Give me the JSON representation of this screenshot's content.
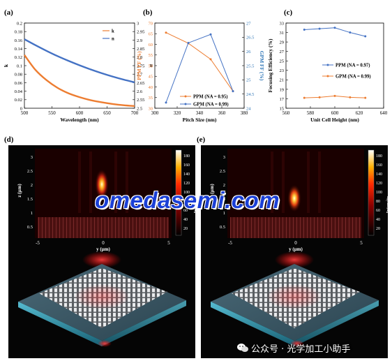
{
  "chart_data": [
    {
      "panel": "(a)",
      "type": "line",
      "xlabel": "Wavelength (nm)",
      "ylabel_left": "k",
      "ylabel_right": "n",
      "xlim": [
        500,
        700
      ],
      "ylim_left": [
        0,
        0.2
      ],
      "ylim_right": [
        2.5,
        3.0
      ],
      "xticks": [
        500,
        550,
        600,
        650,
        700
      ],
      "yticks_left": [
        "0",
        "0.02",
        "0.04",
        "0.06",
        "0.08",
        "0.1",
        "0.12",
        "0.14",
        "0.16",
        "0.18",
        "0.2"
      ],
      "yticks_right": [
        "2.5",
        "2.55",
        "2.6",
        "2.65",
        "2.7",
        "2.75",
        "2.8",
        "2.85",
        "2.9",
        "2.95",
        "3"
      ],
      "legend": "top-right",
      "series": [
        {
          "name": "k",
          "axis": "left",
          "color": "#ed7d31",
          "x": [
            500,
            520,
            540,
            560,
            580,
            600,
            620,
            640,
            660,
            680,
            700
          ],
          "y": [
            0.125,
            0.09,
            0.066,
            0.048,
            0.035,
            0.026,
            0.019,
            0.014,
            0.01,
            0.007,
            0.005
          ]
        },
        {
          "name": "n",
          "axis": "right",
          "color": "#4472c4",
          "x": [
            500,
            520,
            540,
            560,
            580,
            600,
            620,
            640,
            660,
            680,
            700
          ],
          "y": [
            2.905,
            2.87,
            2.837,
            2.806,
            2.778,
            2.752,
            2.728,
            2.706,
            2.686,
            2.668,
            2.652
          ]
        }
      ]
    },
    {
      "panel": "(b)",
      "type": "line",
      "xlabel": "Pitch Size (nm)",
      "ylabel_left": "PPM FF (%)",
      "ylabel_right": "GPM FF (%)",
      "xlim": [
        300,
        380
      ],
      "ylim_left": [
        30,
        70
      ],
      "ylim_right": [
        24,
        27
      ],
      "xticks": [
        300,
        320,
        340,
        360,
        380
      ],
      "yticks_left": [
        "30",
        "35",
        "40",
        "45",
        "50",
        "55",
        "60",
        "65",
        "70"
      ],
      "yticks_right": [
        "24",
        "24.5",
        "25",
        "25.5",
        "26",
        "26.5",
        "27"
      ],
      "legend": "bottom-center",
      "series": [
        {
          "name": "PPM (NA = 0.95)",
          "axis": "left",
          "color": "#ed7d31",
          "x": [
            310,
            330,
            350,
            370
          ],
          "y": [
            65.5,
            60.5,
            53,
            38
          ]
        },
        {
          "name": "GPM (NA = 0.99)",
          "axis": "right",
          "color": "#4472c4",
          "x": [
            310,
            330,
            350,
            370
          ],
          "y": [
            24.2,
            26.3,
            26.6,
            24.6
          ]
        }
      ]
    },
    {
      "panel": "(c)",
      "type": "line",
      "xlabel": "Unit Cell Height (nm)",
      "ylabel": "Focusing Efficiency (%)",
      "xlim": [
        560,
        640
      ],
      "ylim": [
        15,
        33
      ],
      "xticks": [
        560,
        580,
        600,
        620,
        640
      ],
      "yticks": [
        "15",
        "17",
        "19",
        "21",
        "23",
        "25",
        "27",
        "29",
        "31",
        "33"
      ],
      "legend": "center-right",
      "series": [
        {
          "name": "PPM (NA = 0.97)",
          "color": "#4472c4",
          "x": [
            575,
            587.5,
            600,
            612.5,
            625
          ],
          "y": [
            31.6,
            31.8,
            32.0,
            31.0,
            30.2
          ]
        },
        {
          "name": "GPM (NA = 0.99)",
          "color": "#ed7d31",
          "x": [
            575,
            587.5,
            600,
            612.5,
            625
          ],
          "y": [
            17.2,
            17.3,
            17.6,
            17.3,
            17.2
          ]
        }
      ]
    },
    {
      "panel": "(d)",
      "type": "heatmap",
      "xlabel": "y (μm)",
      "ylabel": "z (μm)",
      "colorbar_label": "Intensity",
      "xticks": [
        "-5",
        "0",
        "5"
      ],
      "yticks": [
        "0.5",
        "1",
        "1.5",
        "2",
        "2.5",
        "3"
      ],
      "colorbar_ticks": [
        "20",
        "40",
        "60",
        "80",
        "100",
        "120",
        "140",
        "160",
        "180"
      ],
      "focus": {
        "y": 0,
        "z": 2.0,
        "intensity": 180
      }
    },
    {
      "panel": "(e)",
      "type": "heatmap",
      "xlabel": "y (μm)",
      "ylabel": "z (μm)",
      "colorbar_label": "Intensity",
      "xticks": [
        "-5",
        "0",
        "5"
      ],
      "yticks": [
        "0.5",
        "1",
        "1.5",
        "2",
        "2.5",
        "3"
      ],
      "colorbar_ticks": [
        "20",
        "40",
        "60",
        "80",
        "100",
        "120",
        "140",
        "160",
        "180"
      ],
      "focus": {
        "y": 0,
        "z": 1.5,
        "intensity": 180
      }
    }
  ],
  "watermark_text": "omedasemi.com",
  "footer_text": "公众号 · 光学加工小助手"
}
